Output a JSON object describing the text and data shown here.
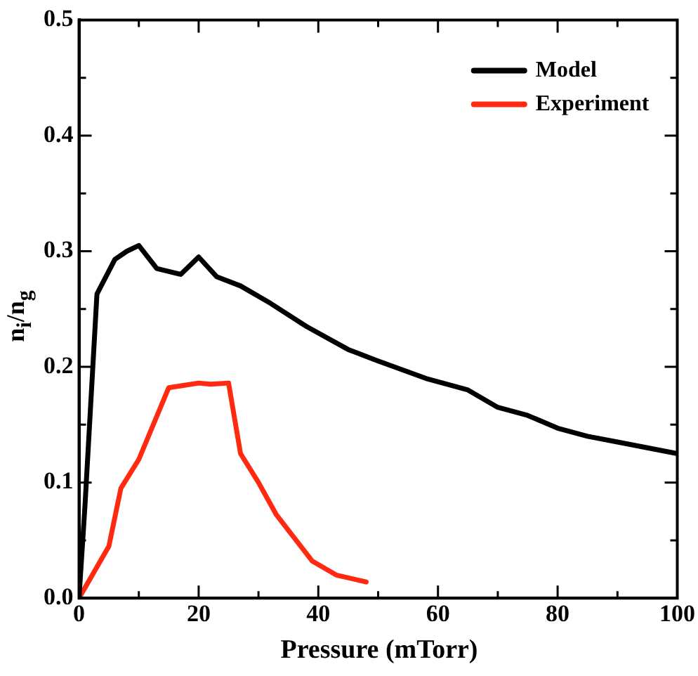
{
  "chart_data": {
    "type": "line",
    "xlabel": "Pressure (mTorr)",
    "ylabel": "n$_{i}$/n$_{g}$",
    "xlim": [
      0,
      100
    ],
    "ylim": [
      0,
      0.5
    ],
    "xticks": [
      0,
      20,
      40,
      60,
      80,
      100
    ],
    "yticks": [
      {
        "value": 0,
        "label": "0.0"
      },
      {
        "value": 0.1,
        "label": "0.1"
      },
      {
        "value": 0.2,
        "label": "0.2"
      },
      {
        "value": 0.3,
        "label": "0.3"
      },
      {
        "value": 0.4,
        "label": "0.4"
      },
      {
        "value": 0.5,
        "label": "0.5"
      }
    ],
    "grid": false,
    "legend": "top right",
    "marker": "none",
    "line_style": "solid",
    "series": [
      {
        "name": "Model",
        "color": "#000000",
        "x": [
          0,
          1,
          3,
          6,
          8,
          10,
          13,
          17,
          20,
          23,
          27,
          32,
          38,
          45,
          50,
          58,
          65,
          70,
          75,
          80,
          85,
          90,
          95,
          100
        ],
        "values": [
          0,
          0.08,
          0.263,
          0.293,
          0.3,
          0.305,
          0.285,
          0.28,
          0.295,
          0.278,
          0.27,
          0.255,
          0.235,
          0.215,
          0.205,
          0.19,
          0.18,
          0.165,
          0.158,
          0.147,
          0.14,
          0.135,
          0.13,
          0.125
        ]
      },
      {
        "name": "Experiment",
        "color": "#ff2a10",
        "x": [
          0,
          5,
          7,
          10,
          15,
          20,
          22,
          25,
          27,
          30,
          33,
          36,
          39,
          43,
          48
        ],
        "values": [
          0,
          0.045,
          0.095,
          0.12,
          0.182,
          0.186,
          0.185,
          0.186,
          0.125,
          0.1,
          0.072,
          0.052,
          0.032,
          0.02,
          0.014
        ]
      }
    ]
  }
}
